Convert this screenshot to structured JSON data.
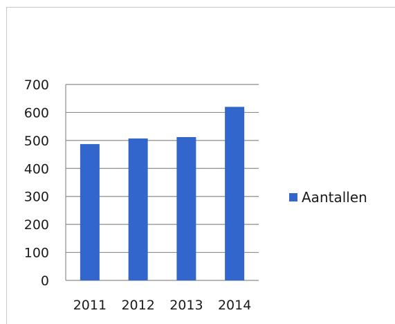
{
  "chart_data": {
    "type": "bar",
    "title": "",
    "xlabel": "",
    "ylabel": "",
    "categories": [
      "2011",
      "2012",
      "2013",
      "2014"
    ],
    "series": [
      {
        "name": "Aantallen",
        "values": [
          487,
          507,
          512,
          620
        ],
        "color": "#3366cc"
      }
    ],
    "ylim": [
      0,
      700
    ],
    "yticks": [
      "0",
      "100",
      "200",
      "300",
      "400",
      "500",
      "600",
      "700"
    ],
    "grid": true,
    "legend_position": "right"
  }
}
